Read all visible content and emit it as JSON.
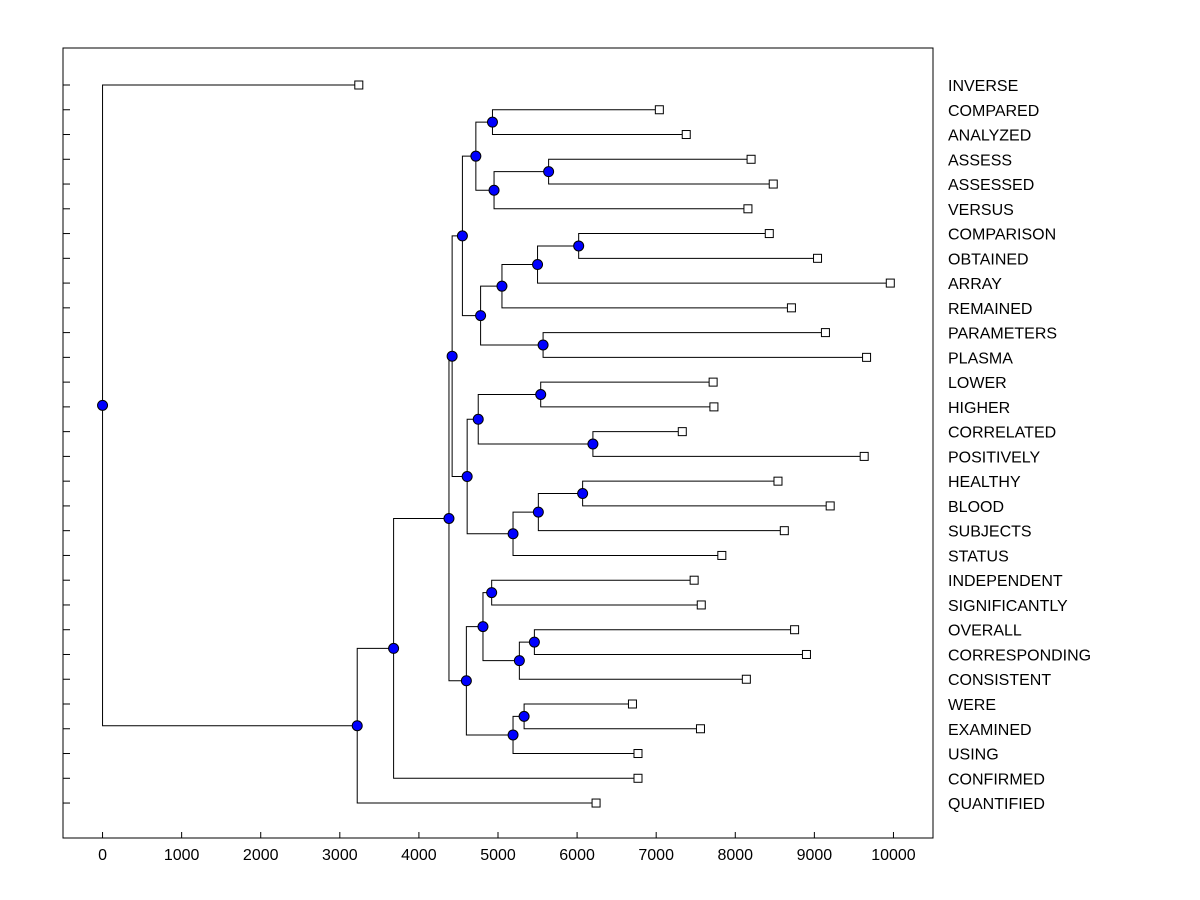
{
  "chart_data": {
    "type": "dendrogram",
    "title": "",
    "xlabel": "",
    "ylabel": "",
    "xlim": [
      -500,
      10500
    ],
    "x_ticks": [
      0,
      1000,
      2000,
      3000,
      4000,
      5000,
      6000,
      7000,
      8000,
      9000,
      10000
    ],
    "grid": false,
    "colors": {
      "node_fill": "#0000ff",
      "leaf_fill": "#ffffff",
      "line": "#000000"
    },
    "leaves": [
      {
        "name": "INVERSE",
        "value": 3240
      },
      {
        "name": "COMPARED",
        "value": 7040
      },
      {
        "name": "ANALYZED",
        "value": 7380
      },
      {
        "name": "ASSESS",
        "value": 8200
      },
      {
        "name": "ASSESSED",
        "value": 8480
      },
      {
        "name": "VERSUS",
        "value": 8160
      },
      {
        "name": "COMPARISON",
        "value": 8430
      },
      {
        "name": "OBTAINED",
        "value": 9040
      },
      {
        "name": "ARRAY",
        "value": 9960
      },
      {
        "name": "REMAINED",
        "value": 8710
      },
      {
        "name": "PARAMETERS",
        "value": 9140
      },
      {
        "name": "PLASMA",
        "value": 9660
      },
      {
        "name": "LOWER",
        "value": 7720
      },
      {
        "name": "HIGHER",
        "value": 7730
      },
      {
        "name": "CORRELATED",
        "value": 7330
      },
      {
        "name": "POSITIVELY",
        "value": 9630
      },
      {
        "name": "HEALTHY",
        "value": 8540
      },
      {
        "name": "BLOOD",
        "value": 9200
      },
      {
        "name": "SUBJECTS",
        "value": 8620
      },
      {
        "name": "STATUS",
        "value": 7830
      },
      {
        "name": "INDEPENDENT",
        "value": 7480
      },
      {
        "name": "SIGNIFICANTLY",
        "value": 7570
      },
      {
        "name": "OVERALL",
        "value": 8750
      },
      {
        "name": "CORRESPONDING",
        "value": 8900
      },
      {
        "name": "CONSISTENT",
        "value": 8140
      },
      {
        "name": "WERE",
        "value": 6700
      },
      {
        "name": "EXAMINED",
        "value": 7560
      },
      {
        "name": "USING",
        "value": 6770
      },
      {
        "name": "CONFIRMED",
        "value": 6770
      },
      {
        "name": "QUANTIFIED",
        "value": 6240
      }
    ],
    "merges": [
      {
        "a": 1,
        "b": 2,
        "value": 4930
      },
      {
        "a": 3,
        "b": 4,
        "value": 5640
      },
      {
        "a": 31,
        "b": 5,
        "value": 4950
      },
      {
        "a": 30,
        "b": 32,
        "value": 4720
      },
      {
        "a": 6,
        "b": 7,
        "value": 6020
      },
      {
        "a": 34,
        "b": 8,
        "value": 5500
      },
      {
        "a": 35,
        "b": 9,
        "value": 5050
      },
      {
        "a": 10,
        "b": 11,
        "value": 5570
      },
      {
        "a": 36,
        "b": 37,
        "value": 4780
      },
      {
        "a": 33,
        "b": 38,
        "value": 4550
      },
      {
        "a": 12,
        "b": 13,
        "value": 5540
      },
      {
        "a": 14,
        "b": 15,
        "value": 6200
      },
      {
        "a": 40,
        "b": 41,
        "value": 4750
      },
      {
        "a": 16,
        "b": 17,
        "value": 6070
      },
      {
        "a": 43,
        "b": 18,
        "value": 5510
      },
      {
        "a": 44,
        "b": 19,
        "value": 5190
      },
      {
        "a": 42,
        "b": 45,
        "value": 4610
      },
      {
        "a": 39,
        "b": 46,
        "value": 4420
      },
      {
        "a": 20,
        "b": 21,
        "value": 4920
      },
      {
        "a": 22,
        "b": 23,
        "value": 5460
      },
      {
        "a": 49,
        "b": 24,
        "value": 5270
      },
      {
        "a": 48,
        "b": 50,
        "value": 4810
      },
      {
        "a": 25,
        "b": 26,
        "value": 5330
      },
      {
        "a": 52,
        "b": 27,
        "value": 5190
      },
      {
        "a": 51,
        "b": 53,
        "value": 4600
      },
      {
        "a": 47,
        "b": 54,
        "value": 4380
      },
      {
        "a": 55,
        "b": 28,
        "value": 3680
      },
      {
        "a": 56,
        "b": 29,
        "value": 3220
      },
      {
        "a": 0,
        "b": 57,
        "value": 0
      }
    ]
  }
}
